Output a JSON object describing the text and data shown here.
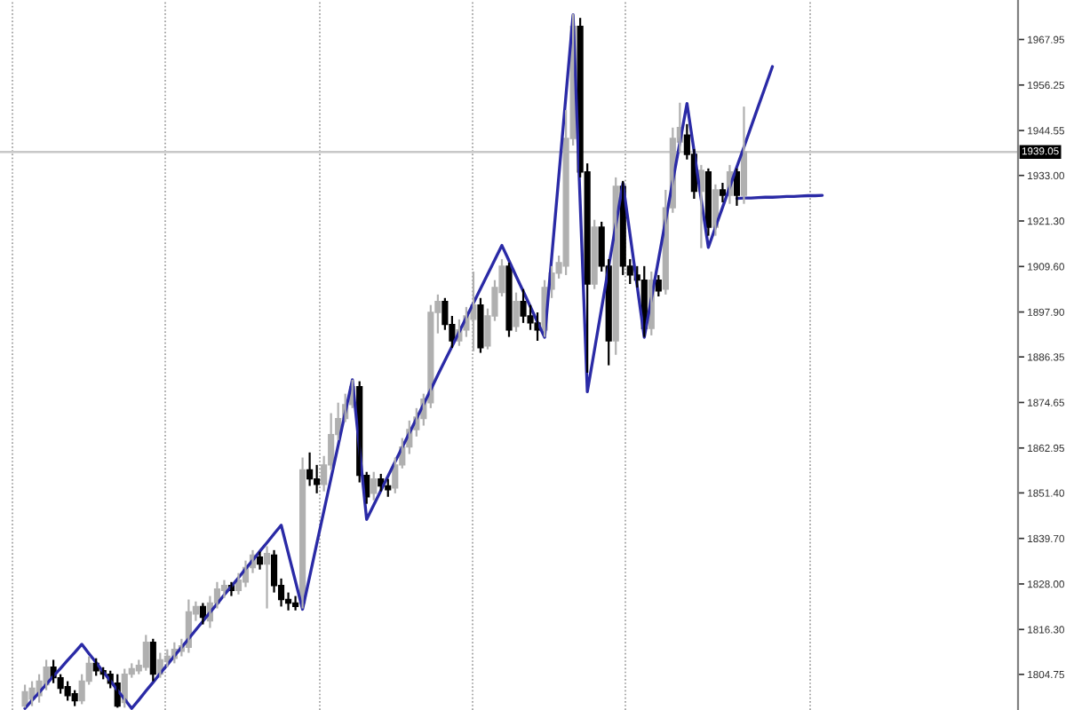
{
  "chart_data": {
    "type": "candlestick",
    "categories": [
      null,
      null,
      null,
      null,
      null,
      null,
      null,
      null,
      null,
      null,
      null,
      null,
      null,
      null,
      null,
      null,
      null,
      null,
      null,
      null,
      null,
      null,
      null,
      null,
      null,
      null,
      null,
      null,
      null,
      null,
      null,
      null,
      null,
      null,
      null,
      null,
      null,
      null,
      null,
      null,
      null,
      null,
      null,
      null,
      null,
      null,
      null,
      null,
      null,
      null,
      null,
      null,
      null,
      null,
      null,
      null,
      null,
      null,
      null,
      null,
      null,
      null,
      null,
      null,
      null,
      null,
      null,
      null,
      null,
      null,
      null,
      null,
      null,
      null,
      null,
      null,
      null,
      null,
      null,
      null,
      null,
      null,
      null,
      null,
      null,
      null,
      null,
      null,
      null,
      null,
      null,
      null,
      null,
      null,
      null,
      null,
      null,
      null,
      null,
      null,
      null,
      null,
      null,
      null,
      null,
      null,
      null,
      null,
      null,
      null,
      null,
      null,
      null,
      null,
      null,
      null,
      null,
      null,
      null,
      null,
      null,
      null,
      null,
      null,
      null,
      null,
      null,
      null,
      null,
      null,
      null,
      null,
      null,
      null,
      null,
      null,
      null,
      null,
      null,
      null,
      null,
      null,
      null
    ],
    "ohlc": [
      null,
      null,
      null,
      [
        1796.6,
        1802.1,
        1796.2,
        1800.3
      ],
      [
        1798.4,
        1803.0,
        1796.6,
        1801.2
      ],
      [
        1799.3,
        1804.8,
        1797.5,
        1803.0
      ],
      [
        1802.1,
        1808.5,
        1800.7,
        1806.6
      ],
      [
        1806.6,
        1808.5,
        1802.5,
        1803.9
      ],
      [
        1803.9,
        1804.8,
        1799.8,
        1801.2
      ],
      [
        1801.6,
        1803.0,
        1798.0,
        1799.3
      ],
      [
        1799.8,
        1800.7,
        1796.6,
        1798.0
      ],
      [
        1798.0,
        1804.8,
        1797.1,
        1803.0
      ],
      [
        1803.0,
        1809.4,
        1802.1,
        1807.6
      ],
      [
        1807.6,
        1808.9,
        1804.4,
        1805.7
      ],
      [
        1805.7,
        1806.6,
        1803.5,
        1804.8
      ],
      [
        1804.8,
        1805.7,
        1801.2,
        1802.5
      ],
      [
        1802.5,
        1804.8,
        1796.2,
        1796.6
      ],
      [
        1797.5,
        1806.2,
        1796.2,
        1804.8
      ],
      [
        1804.8,
        1807.6,
        1803.9,
        1806.2
      ],
      [
        1805.7,
        1808.5,
        1804.8,
        1807.1
      ],
      [
        1806.6,
        1814.9,
        1805.7,
        1813.0
      ],
      [
        1813.0,
        1813.9,
        1803.0,
        1804.8
      ],
      [
        1804.8,
        1810.3,
        1803.9,
        1808.5
      ],
      [
        1808.0,
        1811.2,
        1806.6,
        1809.4
      ],
      [
        1808.9,
        1813.0,
        1807.6,
        1811.2
      ],
      [
        1810.7,
        1813.9,
        1809.4,
        1812.1
      ],
      [
        1811.7,
        1824.0,
        1810.3,
        1820.8
      ],
      [
        1820.3,
        1823.5,
        1818.5,
        1822.2
      ],
      [
        1822.2,
        1823.1,
        1817.6,
        1819.4
      ],
      [
        1818.5,
        1824.9,
        1816.7,
        1823.1
      ],
      [
        1823.1,
        1828.5,
        1821.7,
        1826.7
      ],
      [
        1826.3,
        1829.0,
        1824.4,
        1827.6
      ],
      [
        1827.6,
        1828.5,
        1824.9,
        1826.3
      ],
      [
        1826.3,
        1830.8,
        1825.3,
        1829.0
      ],
      [
        1828.5,
        1834.0,
        1827.2,
        1832.2
      ],
      [
        1832.2,
        1836.7,
        1830.8,
        1835.4
      ],
      [
        1834.9,
        1836.3,
        1831.7,
        1833.1
      ],
      [
        1833.1,
        1837.7,
        1821.7,
        1835.8
      ],
      [
        1835.4,
        1836.7,
        1825.8,
        1827.6
      ],
      [
        1827.6,
        1829.4,
        1822.2,
        1824.0
      ],
      [
        1824.0,
        1825.8,
        1821.2,
        1823.1
      ],
      [
        1823.1,
        1824.9,
        1821.2,
        1822.2
      ],
      [
        1823.1,
        1860.5,
        1821.7,
        1857.3
      ],
      [
        1857.3,
        1861.8,
        1853.2,
        1855.0
      ],
      [
        1855.0,
        1858.6,
        1851.3,
        1853.6
      ],
      [
        1853.6,
        1860.9,
        1851.8,
        1858.6
      ],
      [
        1858.6,
        1871.9,
        1857.3,
        1866.4
      ],
      [
        1866.4,
        1874.6,
        1865.0,
        1870.5
      ],
      [
        1870.5,
        1876.9,
        1869.6,
        1874.1
      ],
      [
        1874.1,
        1880.5,
        1873.2,
        1878.7
      ],
      [
        1878.7,
        1880.1,
        1854.1,
        1855.9
      ],
      [
        1855.9,
        1856.8,
        1848.6,
        1850.4
      ],
      [
        1851.3,
        1856.8,
        1849.5,
        1855.0
      ],
      [
        1855.0,
        1856.3,
        1851.8,
        1853.2
      ],
      [
        1853.2,
        1855.0,
        1850.4,
        1852.2
      ],
      [
        1852.7,
        1860.5,
        1851.3,
        1858.6
      ],
      [
        1858.6,
        1865.5,
        1857.7,
        1863.2
      ],
      [
        1863.2,
        1870.0,
        1861.4,
        1867.7
      ],
      [
        1867.7,
        1873.2,
        1865.9,
        1870.9
      ],
      [
        1870.5,
        1876.9,
        1868.7,
        1875.5
      ],
      [
        1874.6,
        1899.7,
        1873.2,
        1897.8
      ],
      [
        1897.8,
        1902.4,
        1892.4,
        1900.6
      ],
      [
        1900.6,
        1901.5,
        1893.3,
        1894.7
      ],
      [
        1894.7,
        1896.9,
        1888.7,
        1890.5
      ],
      [
        1890.5,
        1896.0,
        1889.2,
        1893.3
      ],
      [
        1893.3,
        1899.2,
        1891.5,
        1896.9
      ],
      [
        1896.0,
        1908.3,
        1887.8,
        1899.7
      ],
      [
        1899.7,
        1901.5,
        1887.4,
        1888.7
      ],
      [
        1889.2,
        1898.8,
        1888.3,
        1896.9
      ],
      [
        1896.9,
        1906.1,
        1895.6,
        1904.2
      ],
      [
        1902.9,
        1911.5,
        1901.9,
        1909.7
      ],
      [
        1909.7,
        1910.6,
        1891.5,
        1893.3
      ],
      [
        1894.2,
        1902.9,
        1892.8,
        1900.6
      ],
      [
        1900.6,
        1903.8,
        1895.1,
        1896.9
      ],
      [
        1896.9,
        1899.7,
        1893.3,
        1895.1
      ],
      [
        1895.1,
        1897.8,
        1890.5,
        1893.3
      ],
      [
        1893.3,
        1906.1,
        1891.5,
        1904.2
      ],
      [
        1903.8,
        1909.7,
        1901.5,
        1907.9
      ],
      [
        1907.9,
        1912.4,
        1906.5,
        1910.6
      ],
      [
        1909.7,
        1949.8,
        1907.4,
        1942.5
      ],
      [
        1942.5,
        1974.5,
        1940.7,
        1971.3
      ],
      [
        1971.3,
        1973.5,
        1932.5,
        1933.9
      ],
      [
        1933.9,
        1936.1,
        1882.3,
        1905.1
      ],
      [
        1905.1,
        1921.6,
        1903.8,
        1919.7
      ],
      [
        1919.7,
        1921.1,
        1908.3,
        1909.7
      ],
      [
        1909.7,
        1911.5,
        1884.2,
        1890.5
      ],
      [
        1890.5,
        1932.5,
        1886.9,
        1930.2
      ],
      [
        1930.2,
        1931.6,
        1907.4,
        1909.7
      ],
      [
        1909.7,
        1911.5,
        1905.1,
        1907.4
      ],
      [
        1907.4,
        1909.7,
        1904.2,
        1906.1
      ],
      [
        1906.1,
        1909.7,
        1891.5,
        1893.7
      ],
      [
        1893.7,
        1908.3,
        1891.9,
        1906.1
      ],
      [
        1906.1,
        1907.4,
        1901.9,
        1903.3
      ],
      [
        1903.8,
        1929.3,
        1902.4,
        1924.7
      ],
      [
        1924.7,
        1945.3,
        1923.4,
        1942.5
      ],
      [
        1941.6,
        1951.7,
        1938.9,
        1945.3
      ],
      [
        1943.4,
        1946.2,
        1937.1,
        1938.4
      ],
      [
        1938.4,
        1939.8,
        1927.0,
        1928.9
      ],
      [
        1928.9,
        1935.7,
        1914.3,
        1934.3
      ],
      [
        1933.9,
        1934.8,
        1917.5,
        1919.7
      ],
      [
        1919.7,
        1930.7,
        1917.5,
        1929.3
      ],
      [
        1929.3,
        1931.1,
        1926.1,
        1927.9
      ],
      [
        1927.9,
        1935.7,
        1925.7,
        1933.9
      ],
      [
        1933.9,
        1934.8,
        1925.2,
        1927.9
      ],
      [
        1927.9,
        1950.7,
        1925.7,
        1939.05
      ],
      null,
      null,
      null,
      null,
      null,
      null,
      null,
      null,
      null,
      null,
      null,
      null,
      null,
      null,
      null,
      null,
      null,
      null,
      null,
      null,
      null,
      null,
      null,
      null,
      null,
      null,
      null,
      null,
      null,
      null,
      null,
      null,
      null,
      null,
      null,
      null,
      null,
      null
    ],
    "colors": [
      null,
      null,
      null,
      "#b0b0b0",
      "#b0b0b0",
      "#b0b0b0",
      "#b0b0b0",
      "#000000",
      "#000000",
      "#000000",
      "#000000",
      "#b0b0b0",
      "#b0b0b0",
      "#000000",
      "#000000",
      "#000000",
      "#000000",
      "#b0b0b0",
      "#b0b0b0",
      "#b0b0b0",
      "#b0b0b0",
      "#000000",
      "#b0b0b0",
      "#b0b0b0",
      "#b0b0b0",
      "#b0b0b0",
      "#b0b0b0",
      "#b0b0b0",
      "#000000",
      "#b0b0b0",
      "#b0b0b0",
      "#b0b0b0",
      "#000000",
      "#b0b0b0",
      "#b0b0b0",
      "#b0b0b0",
      "#000000",
      "#b0b0b0",
      "#000000",
      "#000000",
      "#000000",
      "#000000",
      "#b0b0b0",
      "#000000",
      "#000000",
      "#b0b0b0",
      "#b0b0b0",
      "#b0b0b0",
      "#b0b0b0",
      "#b0b0b0",
      "#000000",
      "#000000",
      "#b0b0b0",
      "#000000",
      "#000000",
      "#b0b0b0",
      "#b0b0b0",
      "#b0b0b0",
      "#b0b0b0",
      "#b0b0b0",
      "#b0b0b0",
      "#b0b0b0",
      "#000000",
      "#000000",
      "#b0b0b0",
      "#b0b0b0",
      "#b0b0b0",
      "#000000",
      "#b0b0b0",
      "#b0b0b0",
      "#b0b0b0",
      "#000000",
      "#b0b0b0",
      "#000000",
      "#000000",
      "#000000",
      "#b0b0b0",
      "#b0b0b0",
      "#b0b0b0",
      "#b0b0b0",
      "#b0b0b0",
      "#000000",
      "#000000",
      "#b0b0b0",
      "#000000",
      "#000000",
      "#b0b0b0",
      "#000000",
      "#000000",
      "#000000",
      "#000000",
      "#b0b0b0",
      "#000000",
      "#b0b0b0",
      "#b0b0b0",
      "#b0b0b0",
      "#000000",
      "#000000",
      "#b0b0b0",
      "#000000",
      "#b0b0b0",
      "#000000",
      "#b0b0b0",
      "#000000",
      "#b0b0b0",
      null,
      null,
      null,
      null,
      null,
      null,
      null,
      null,
      null,
      null,
      null,
      null,
      null,
      null,
      null,
      null,
      null,
      null,
      null,
      null,
      null,
      null,
      null,
      null,
      null,
      null,
      null,
      null,
      null,
      null,
      null,
      null,
      null,
      null,
      null,
      null,
      null,
      null
    ],
    "series": [
      {
        "type": "line",
        "color": "#2a2aa6",
        "values": [
          null,
          null,
          null,
          1796.0,
          1798.1,
          1800.1,
          1802.2,
          1804.3,
          1806.3,
          1808.4,
          1810.4,
          1812.5,
          1810.1,
          1807.8,
          1805.4,
          1803.1,
          1800.7,
          1798.4,
          1796.0,
          1798.2,
          1800.5,
          1802.7,
          1805.0,
          1807.2,
          1809.5,
          1811.7,
          1813.9,
          1816.2,
          1818.4,
          1820.7,
          1822.9,
          1825.2,
          1827.4,
          1829.6,
          1831.9,
          1834.1,
          1836.4,
          1838.6,
          1840.9,
          1843.1,
          1835.9,
          1828.7,
          1821.5,
          1829.9,
          1838.4,
          1846.8,
          1855.2,
          1863.6,
          1872.1,
          1880.5,
          1862.6,
          1844.6,
          1848.3,
          1852.0,
          1855.7,
          1859.4,
          1863.1,
          1866.8,
          1870.5,
          1874.2,
          1877.9,
          1881.7,
          1885.4,
          1889.1,
          1892.8,
          1896.5,
          1900.2,
          1903.9,
          1907.6,
          1911.3,
          1915.0,
          1911.1,
          1907.1,
          1903.2,
          1899.3,
          1895.3,
          1891.4,
          1912.1,
          1932.9,
          1953.6,
          1974.3,
          1925.9,
          1877.4,
          1888.1,
          1898.8,
          1909.6,
          1920.3,
          1931.0,
          1917.8,
          1904.6,
          1891.4,
          1901.4,
          1911.4,
          1921.5,
          1931.5,
          1941.5,
          1951.5,
          1939.2,
          1926.8,
          1914.5,
          1919.7,
          1924.8,
          1930.0,
          1935.2,
          1940.3,
          1945.5,
          1950.7,
          1955.8,
          1961.0,
          null,
          null,
          null,
          null,
          null,
          null,
          null,
          null,
          null,
          null,
          null,
          null,
          null,
          null,
          null,
          null,
          null,
          null,
          null,
          null,
          null,
          null,
          null,
          null,
          null,
          null,
          null,
          null,
          null,
          null,
          null,
          null,
          null,
          null
        ]
      },
      {
        "type": "line",
        "color": "#2a2aa6",
        "values": [
          null,
          null,
          null,
          null,
          null,
          null,
          null,
          null,
          null,
          null,
          null,
          null,
          null,
          null,
          null,
          null,
          null,
          null,
          null,
          null,
          null,
          null,
          null,
          null,
          null,
          null,
          null,
          null,
          null,
          null,
          null,
          null,
          null,
          null,
          null,
          null,
          null,
          null,
          null,
          null,
          null,
          null,
          null,
          null,
          null,
          null,
          null,
          null,
          null,
          null,
          null,
          null,
          null,
          null,
          null,
          null,
          null,
          null,
          null,
          null,
          null,
          null,
          null,
          null,
          null,
          null,
          null,
          null,
          null,
          null,
          null,
          null,
          null,
          null,
          null,
          null,
          null,
          null,
          null,
          null,
          null,
          null,
          null,
          null,
          null,
          null,
          null,
          null,
          null,
          null,
          null,
          null,
          null,
          null,
          null,
          null,
          null,
          null,
          null,
          null,
          null,
          null,
          null,
          1927.1,
          1927.2,
          1927.2,
          1927.3,
          1927.4,
          1927.4,
          1927.5,
          1927.6,
          1927.6,
          1927.7,
          1927.8,
          1927.8,
          1927.9,
          null,
          null,
          null,
          null,
          null,
          null,
          null,
          null,
          null,
          null,
          null,
          null,
          null,
          null,
          null,
          null,
          null,
          null,
          null,
          null,
          null,
          null,
          null,
          null,
          null,
          null,
          null
        ]
      }
    ],
    "ylim": [
      1795.6,
      1978.1
    ],
    "yticks": [
      1967.95,
      1956.25,
      1944.55,
      {
        "value": 1933,
        "label": "1933.00"
      },
      {
        "value": 1921.3,
        "label": "1921.30"
      },
      {
        "value": 1909.6,
        "label": "1909.60"
      },
      {
        "value": 1897.9,
        "label": "1897.90"
      },
      1886.35,
      1874.65,
      1862.95,
      {
        "value": 1851.4,
        "label": "1851.40"
      },
      {
        "value": 1839.7,
        "label": "1839.70"
      },
      {
        "value": 1828,
        "label": "1828.00"
      },
      {
        "value": 1816.3,
        "label": "1816.30"
      },
      1804.75
    ],
    "ref_lines": [
      {
        "axis": "y",
        "value": 1939.05,
        "label": "1939.05",
        "color": "#c8c8c8"
      }
    ],
    "grid": "x",
    "tick_labels": "y"
  }
}
